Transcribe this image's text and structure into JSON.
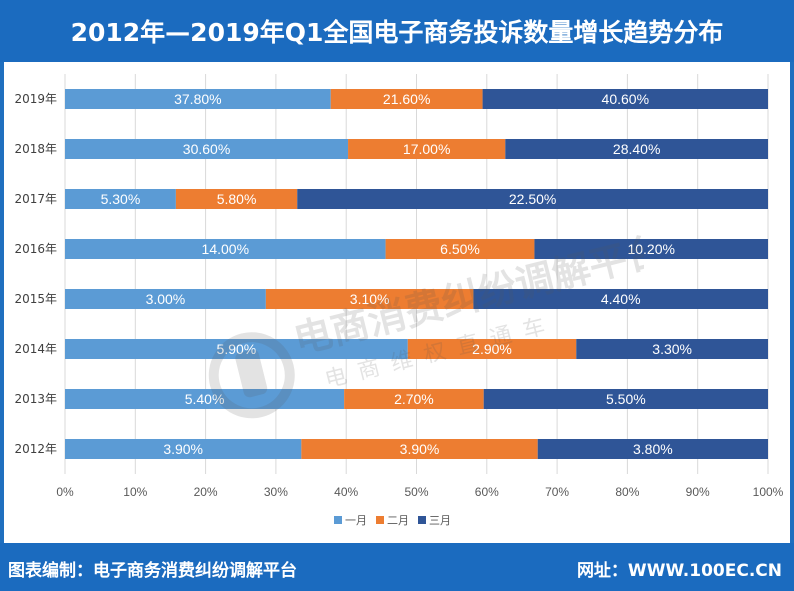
{
  "header": {
    "title": "2012年—2019年Q1全国电子商务投诉数量增长趋势分布"
  },
  "footer": {
    "left_text": "图表编制：电子商务消费纠纷调解平台",
    "right_text": "网址：WWW.100EC.CN"
  },
  "watermark": {
    "line1": "电商消费纠纷调解平台",
    "line2": "电商维权直通车"
  },
  "colors": {
    "jan": "#5b9bd5",
    "feb": "#ed7d31",
    "mar": "#2f5597",
    "grid": "#d9d9d9"
  },
  "chart_data": {
    "type": "bar",
    "orientation": "horizontal",
    "stacked": "percent",
    "categories": [
      "2019年",
      "2018年",
      "2017年",
      "2016年",
      "2015年",
      "2014年",
      "2013年",
      "2012年"
    ],
    "series": [
      {
        "name": "一月",
        "values": [
          37.8,
          30.6,
          5.3,
          14.0,
          3.0,
          5.9,
          5.4,
          3.9
        ],
        "labels": [
          "37.80%",
          "30.60%",
          "5.30%",
          "14.00%",
          "3.00%",
          "5.90%",
          "5.40%",
          "3.90%"
        ]
      },
      {
        "name": "二月",
        "values": [
          21.6,
          17.0,
          5.8,
          6.5,
          3.1,
          2.9,
          2.7,
          3.9
        ],
        "labels": [
          "21.60%",
          "17.00%",
          "5.80%",
          "6.50%",
          "3.10%",
          "2.90%",
          "2.70%",
          "3.90%"
        ]
      },
      {
        "name": "三月",
        "values": [
          40.6,
          28.4,
          22.5,
          10.2,
          4.4,
          3.3,
          5.5,
          3.8
        ],
        "labels": [
          "40.60%",
          "28.40%",
          "22.50%",
          "10.20%",
          "4.40%",
          "3.30%",
          "5.50%",
          "3.80%"
        ]
      }
    ],
    "x_ticks": [
      "0%",
      "10%",
      "20%",
      "30%",
      "40%",
      "50%",
      "60%",
      "70%",
      "80%",
      "90%",
      "100%"
    ],
    "xlim": [
      0,
      100
    ],
    "grid": true,
    "legend_position": "bottom"
  }
}
